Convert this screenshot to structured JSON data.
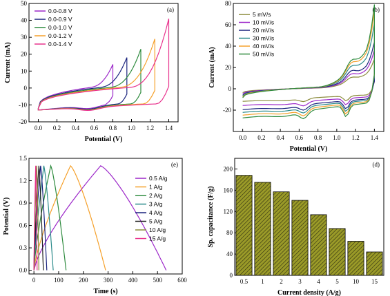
{
  "colors": {
    "purple": "#9c27c9",
    "navy": "#1a237e",
    "green": "#2e8b3e",
    "orange": "#f5a02a",
    "magenta": "#e8308c",
    "olive": "#8a8a3a",
    "bar_fill": "#9a9a28",
    "teal": "#2a8a8a",
    "black": "#222222"
  },
  "chart_data": [
    {
      "panel_label": "(a)",
      "type": "line",
      "xlabel": "Potential (V)",
      "ylabel": "Current (mA)",
      "xlim": [
        -0.1,
        1.5
      ],
      "ylim": [
        -20,
        50
      ],
      "xticks": [
        "0.0",
        "0.2",
        "0.4",
        "0.6",
        "0.8",
        "1.0",
        "1.2",
        "1.4"
      ],
      "yticks": [
        "-20",
        "-10",
        "0",
        "10",
        "20",
        "30",
        "40",
        "50"
      ],
      "legend_position": "top-left",
      "series": [
        {
          "name": "0.0-0.8 V",
          "color": "#9c27c9",
          "vmax": 0.8,
          "imax": 14
        },
        {
          "name": "0.0-0.9 V",
          "color": "#1a237e",
          "vmax": 0.95,
          "imax": 18
        },
        {
          "name": "0.0-1.0 V",
          "color": "#2e8b3e",
          "vmax": 1.1,
          "imax": 23
        },
        {
          "name": "0.0-1.2 V",
          "color": "#f5a02a",
          "vmax": 1.25,
          "imax": 29
        },
        {
          "name": "0.0-1.4 V",
          "color": "#e8308c",
          "vmax": 1.4,
          "imax": 41
        }
      ]
    },
    {
      "panel_label": "(b)",
      "type": "line",
      "xlabel": "Potential (V)",
      "ylabel": "Current (mA)",
      "xlim": [
        -0.1,
        1.5
      ],
      "ylim": [
        -40,
        80
      ],
      "xticks": [
        "0.0",
        "0.2",
        "0.4",
        "0.6",
        "0.8",
        "1.0",
        "1.2",
        "1.4"
      ],
      "yticks": [
        "-20",
        "0",
        "20",
        "40",
        "60",
        "80"
      ],
      "legend_position": "top-left",
      "series": [
        {
          "name": "5 mV/s",
          "color": "#8a8a3a",
          "scale": 0.45,
          "imax": 30
        },
        {
          "name": "10 mV/s",
          "color": "#9c27c9",
          "scale": 0.6,
          "imax": 38
        },
        {
          "name": "20 mV/s",
          "color": "#1a237e",
          "scale": 0.75,
          "imax": 45
        },
        {
          "name": "30 mV/s",
          "color": "#2a8a8a",
          "scale": 0.85,
          "imax": 62
        },
        {
          "name": "40 mV/s",
          "color": "#f5a02a",
          "scale": 0.95,
          "imax": 73
        },
        {
          "name": "50 mV/s",
          "color": "#2e8b3e",
          "scale": 1.05,
          "imax": 79
        }
      ]
    },
    {
      "panel_label": "(e)",
      "type": "line",
      "xlabel": "Time (s)",
      "ylabel": "Potential (V)",
      "xlim": [
        -20,
        600
      ],
      "ylim": [
        -0.05,
        1.5
      ],
      "xticks": [
        "0",
        "100",
        "200",
        "300",
        "400",
        "500",
        "600"
      ],
      "yticks": [
        "0.0",
        "0.3",
        "0.6",
        "0.9",
        "1.2",
        "1.5"
      ],
      "legend_position": "right",
      "series": [
        {
          "name": "0.5 A/g",
          "color": "#9c27c9",
          "t_charge": 270,
          "t_end": 535
        },
        {
          "name": "1 A/g",
          "color": "#f5a02a",
          "t_charge": 148,
          "t_end": 290
        },
        {
          "name": "2 A/g",
          "color": "#2e8b3e",
          "t_charge": 68,
          "t_end": 130
        },
        {
          "name": "3 A/g",
          "color": "#2a8a8a",
          "t_charge": 40,
          "t_end": 78
        },
        {
          "name": "4 A/g",
          "color": "#1a237e",
          "t_charge": 27,
          "t_end": 52
        },
        {
          "name": "5 A/g",
          "color": "#222222",
          "t_charge": 20,
          "t_end": 38
        },
        {
          "name": "10 A/g",
          "color": "#8a8a3a",
          "t_charge": 11,
          "t_end": 20
        },
        {
          "name": "15 A/g",
          "color": "#e8308c",
          "t_charge": 7,
          "t_end": 13
        }
      ]
    },
    {
      "panel_label": "(d)",
      "type": "bar",
      "xlabel": "Current density (A/g)",
      "ylabel": "Sp. capacitance (F/g)",
      "categories": [
        "0.5",
        "1",
        "2",
        "3",
        "4",
        "5",
        "10",
        "15"
      ],
      "values": [
        188,
        175,
        157,
        141,
        114,
        88,
        64,
        44
      ],
      "ylim": [
        0,
        220
      ],
      "yticks": [
        "0",
        "40",
        "80",
        "120",
        "160",
        "200"
      ]
    }
  ]
}
